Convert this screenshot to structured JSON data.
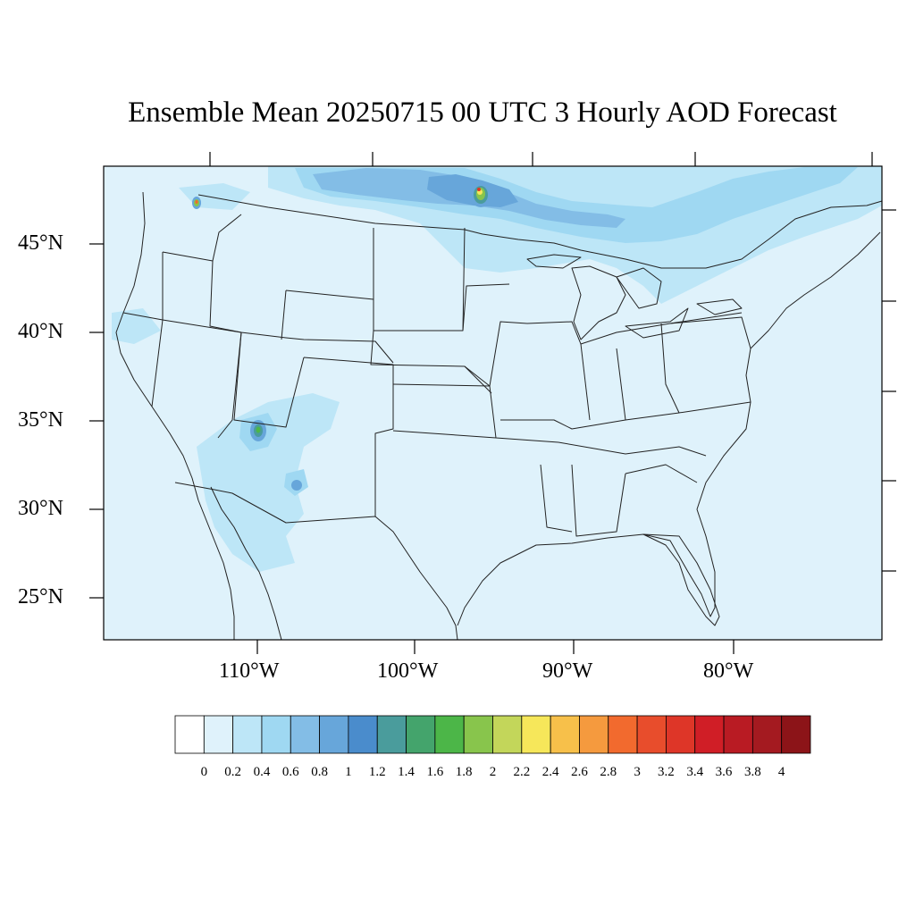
{
  "title": "Ensemble Mean 20250715 00 UTC 3 Hourly AOD Forecast",
  "latitude_labels": [
    "45°N",
    "40°N",
    "35°N",
    "30°N",
    "25°N"
  ],
  "longitude_labels": [
    "110°W",
    "100°W",
    "90°W",
    "80°W"
  ],
  "colorbar": {
    "labels": [
      "0",
      "0.2",
      "0.4",
      "0.6",
      "0.8",
      "1",
      "1.2",
      "1.4",
      "1.6",
      "1.8",
      "2",
      "2.2",
      "2.4",
      "2.6",
      "2.8",
      "3",
      "3.2",
      "3.4",
      "3.6",
      "3.8",
      "4"
    ],
    "colors": [
      "#ffffff",
      "#dff2fb",
      "#bde6f7",
      "#9fd8f2",
      "#83bde6",
      "#67a6da",
      "#4a8ccc",
      "#4a9c9c",
      "#44a46c",
      "#4cb648",
      "#88c54c",
      "#c3d65a",
      "#f6e75a",
      "#f7c04a",
      "#f59a3e",
      "#f26a2e",
      "#e84d2c",
      "#de3628",
      "#d01e26",
      "#b91b23",
      "#a41a20",
      "#8c1418"
    ]
  },
  "colors": {
    "background_aod": "#dff2fb",
    "land_outline": "#222222"
  }
}
